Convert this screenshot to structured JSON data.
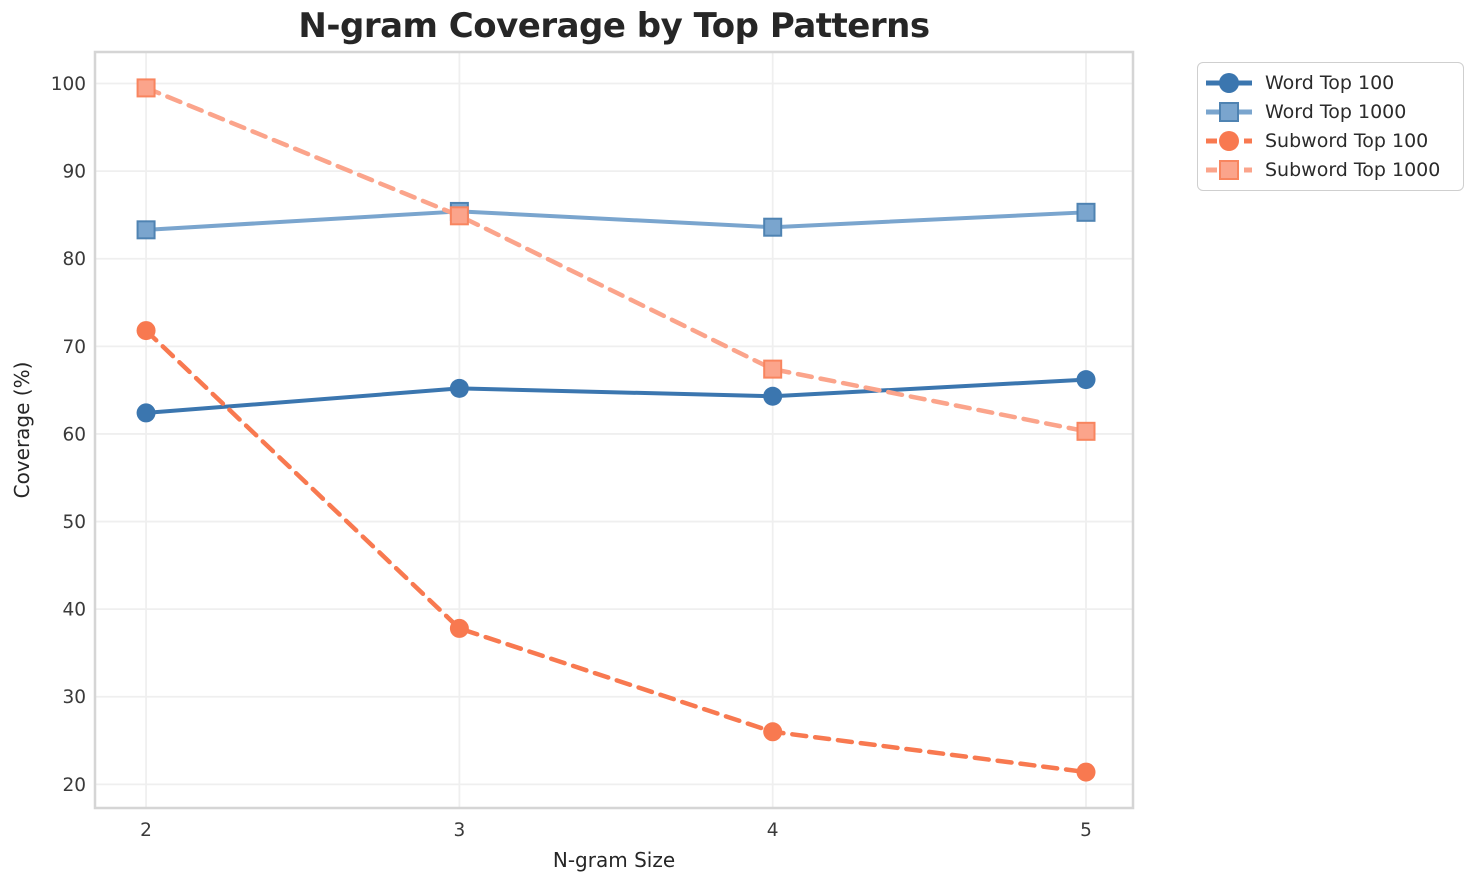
{
  "chart_data": {
    "type": "line",
    "title": "N-gram Coverage by Top Patterns",
    "xlabel": "N-gram Size",
    "ylabel": "Coverage (%)",
    "x": [
      2,
      3,
      4,
      5
    ],
    "xticks": [
      "2",
      "3",
      "4",
      "5"
    ],
    "yticks": [
      20,
      30,
      40,
      50,
      60,
      70,
      80,
      90,
      100
    ],
    "xlim": [
      1.837,
      5.15
    ],
    "ylim": [
      17.3,
      103.6
    ],
    "grid": true,
    "grid_color": "#efefef",
    "frame_color": "#d5d5d5",
    "background": "#ffffff",
    "legend_position": "outside-top-right",
    "series": [
      {
        "name": "Word Top 100",
        "values": [
          62.4,
          65.2,
          64.3,
          66.2
        ],
        "color": "#3b76af",
        "edge": "#3b76af",
        "marker": "circle",
        "line": "solid"
      },
      {
        "name": "Word Top 1000",
        "values": [
          83.3,
          85.4,
          83.6,
          85.3
        ],
        "color": "#7aa5ce",
        "edge": "#4f83b2",
        "marker": "square",
        "line": "solid"
      },
      {
        "name": "Subword Top 100",
        "values": [
          71.8,
          37.8,
          26.0,
          21.4
        ],
        "color": "#f87950",
        "edge": "#f87950",
        "marker": "circle",
        "line": "dashed"
      },
      {
        "name": "Subword Top 1000",
        "values": [
          99.5,
          84.9,
          67.4,
          60.3
        ],
        "color": "#fba48b",
        "edge": "#f8855f",
        "marker": "square",
        "line": "dashed"
      }
    ]
  }
}
